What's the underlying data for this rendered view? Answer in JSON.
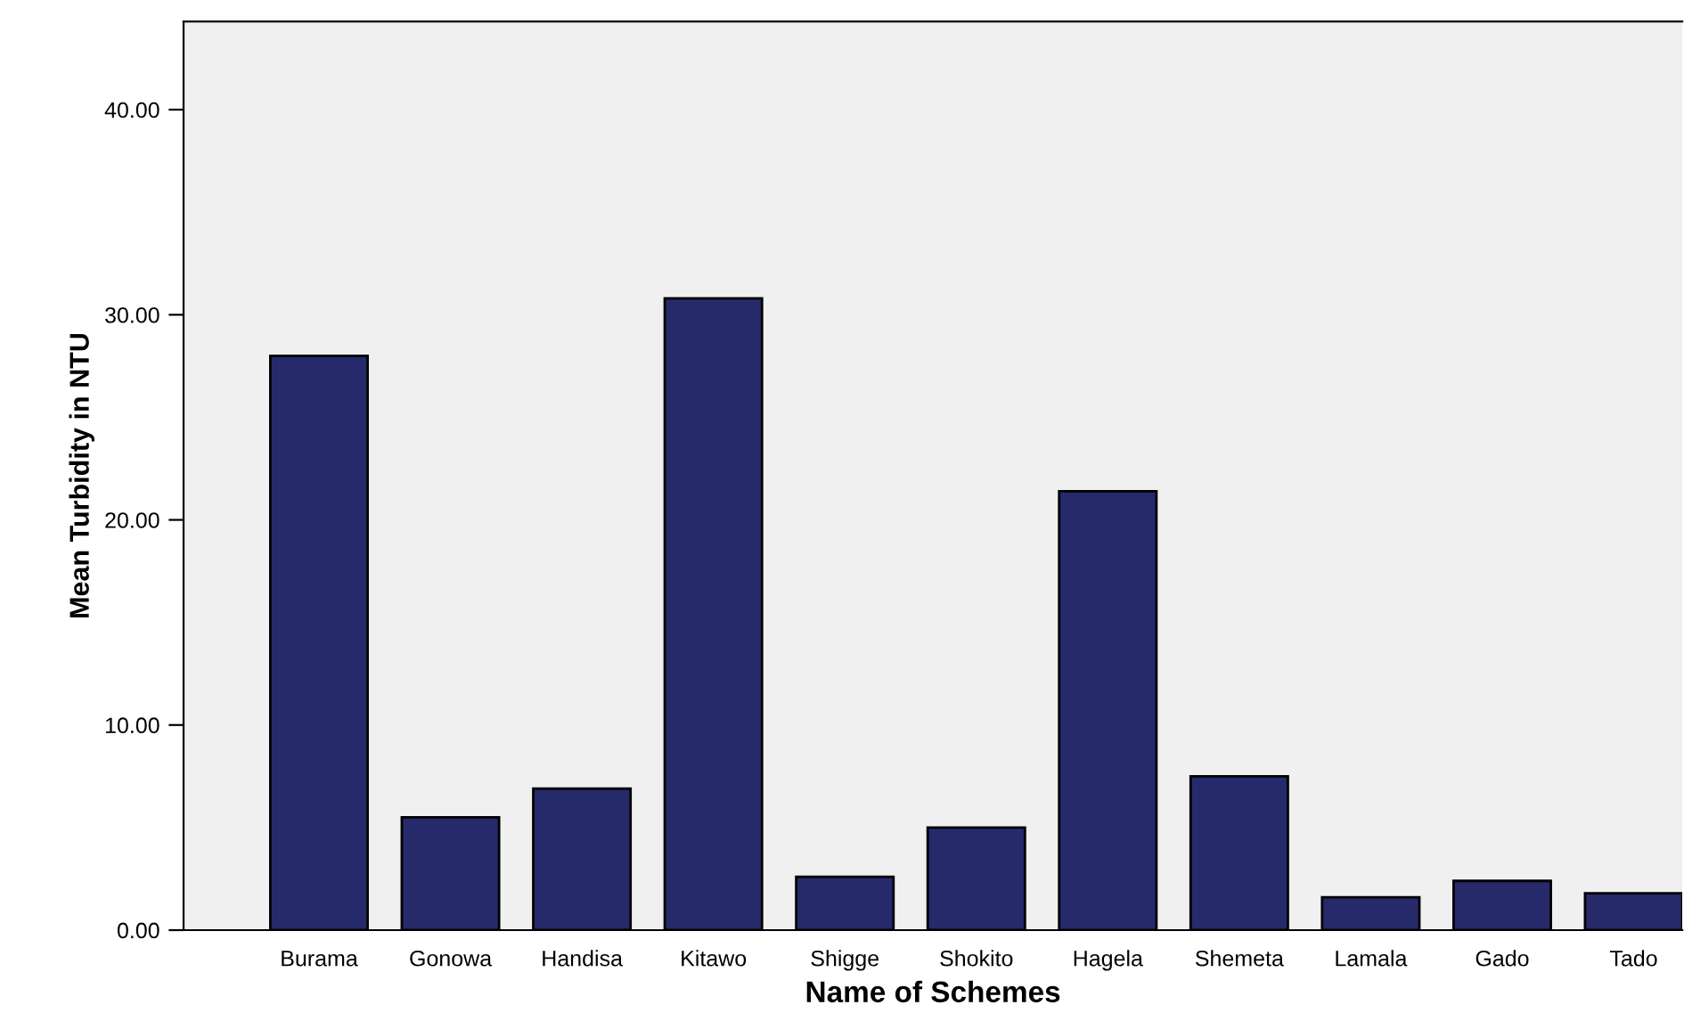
{
  "chart_data": {
    "type": "bar",
    "xlabel": "Name of Schemes",
    "ylabel": "Mean Turbidity in NTU",
    "categories": [
      "Burama",
      "Gonowa",
      "Handisa",
      "Kitawo",
      "Shigge",
      "Shokito",
      "Hagela",
      "Shemeta",
      "Lamala",
      "Gado",
      "Tado"
    ],
    "values": [
      28.0,
      5.5,
      6.9,
      30.8,
      2.6,
      5.0,
      21.4,
      7.5,
      1.6,
      2.4,
      1.8
    ],
    "color": "#262a6b",
    "ylim": [
      0,
      44.3
    ],
    "yticks": [
      {
        "value": 0,
        "label": "0.00"
      },
      {
        "value": 10,
        "label": "10.00"
      },
      {
        "value": 20,
        "label": "20.00"
      },
      {
        "value": 30,
        "label": "30.00"
      },
      {
        "value": 40,
        "label": "40.00"
      }
    ],
    "grid": false,
    "legend": false
  }
}
